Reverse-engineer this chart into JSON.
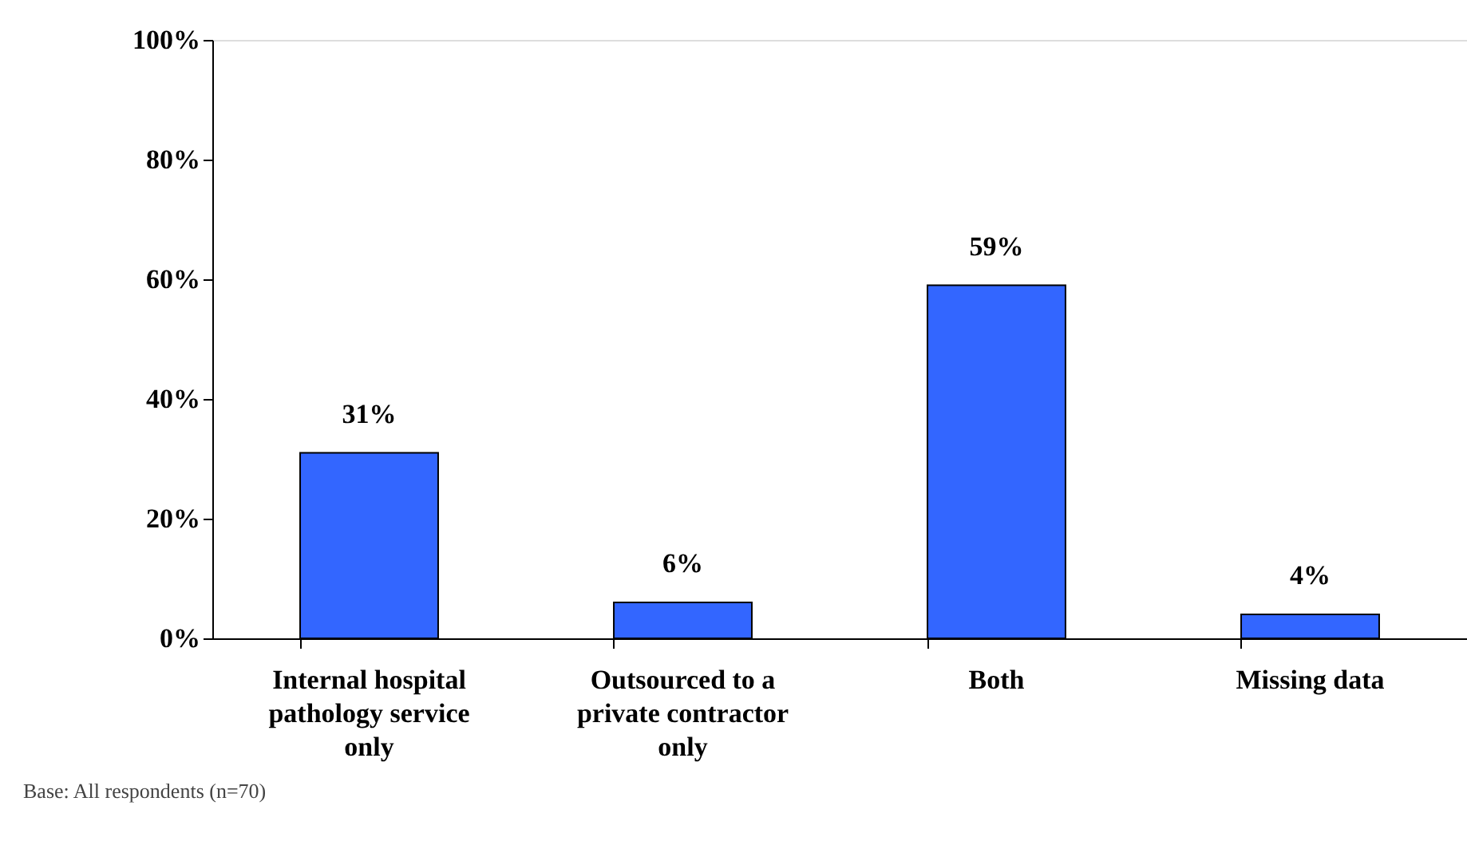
{
  "chart_data": {
    "type": "bar",
    "categories": [
      "Internal hospital pathology service only",
      "Outsourced to a private contractor only",
      "Both",
      "Missing data"
    ],
    "values": [
      31,
      6,
      59,
      4
    ],
    "value_labels": [
      "31%",
      "6%",
      "59%",
      "4%"
    ],
    "color": "#3366ff",
    "ylim": [
      0,
      100
    ],
    "yticks": [
      {
        "value": 0,
        "label": "0%"
      },
      {
        "value": 20,
        "label": "20%"
      },
      {
        "value": 40,
        "label": "40%"
      },
      {
        "value": 60,
        "label": "60%"
      },
      {
        "value": 80,
        "label": "80%"
      },
      {
        "value": 100,
        "label": "100%"
      }
    ],
    "grid": false,
    "annotations": [
      "Base:      All respondents (n=70)"
    ]
  }
}
